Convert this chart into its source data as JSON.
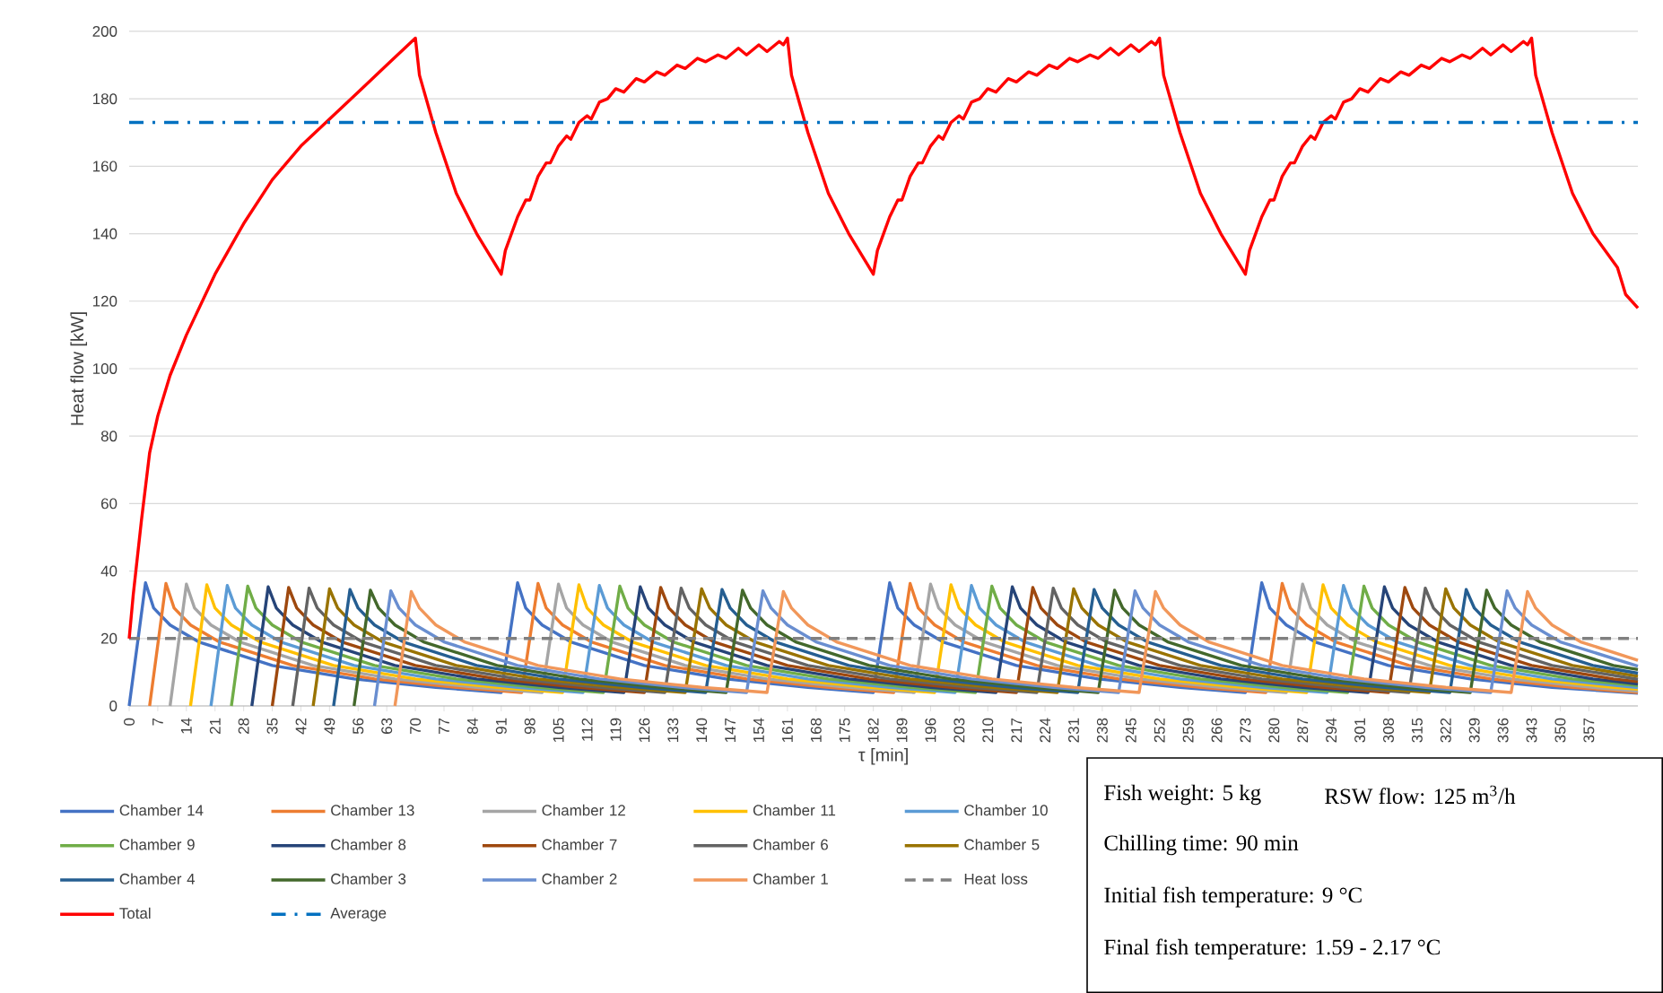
{
  "chart_data": {
    "type": "line",
    "xlabel": "τ [min]",
    "ylabel": "Heat flow [kW]",
    "xlim": [
      0,
      369
    ],
    "ylim": [
      0,
      200
    ],
    "xticks": [
      0,
      7,
      14,
      21,
      28,
      35,
      42,
      49,
      56,
      63,
      70,
      77,
      84,
      91,
      98,
      105,
      112,
      119,
      126,
      133,
      140,
      147,
      154,
      161,
      168,
      175,
      182,
      189,
      196,
      203,
      210,
      217,
      224,
      231,
      238,
      245,
      252,
      259,
      266,
      273,
      280,
      287,
      294,
      301,
      308,
      315,
      322,
      329,
      336,
      343,
      350,
      357
    ],
    "yticks": [
      0,
      20,
      40,
      60,
      80,
      100,
      120,
      140,
      160,
      180,
      200
    ],
    "grid": "y",
    "legend": "bottom",
    "marker": "none",
    "annotations": [
      "Fish weight: 5 kg",
      "RSW flow: 125 m$^{3}$/h",
      "Chilling time: 90 min",
      "Initial fish temperature: 9 °C",
      "Final fish temperature: 1.59 - 2.17 °C"
    ],
    "series": [
      {
        "name": "Chamber 14",
        "color": "#4472c4",
        "x": [
          0,
          4,
          6,
          10,
          17,
          35,
          55,
          75,
          91,
          95,
          97,
          101,
          108,
          126,
          146,
          166,
          182,
          186,
          188,
          192,
          199,
          217,
          237,
          257,
          273,
          277,
          279,
          283,
          290,
          308,
          328,
          348,
          369
        ],
        "values": [
          0,
          36.5,
          29,
          24,
          19,
          12,
          8,
          5.5,
          4,
          36.5,
          29,
          24,
          19,
          12,
          8,
          5.5,
          4,
          36.5,
          29,
          24,
          19,
          12,
          8,
          5.5,
          4,
          36.5,
          29,
          24,
          19,
          12,
          8,
          5.5,
          3.8
        ]
      },
      {
        "name": "Chamber 13",
        "color": "#ed7d31",
        "x": [
          5,
          9,
          11,
          15,
          22,
          40,
          60,
          80,
          96,
          100,
          102,
          106,
          113,
          131,
          151,
          171,
          187,
          191,
          193,
          197,
          204,
          222,
          242,
          262,
          278,
          282,
          284,
          288,
          295,
          313,
          333,
          353,
          369
        ],
        "values": [
          0,
          36.3,
          29,
          24,
          19,
          12,
          8,
          5.5,
          4,
          36.3,
          29,
          24,
          19,
          12,
          8,
          5.5,
          4,
          36.3,
          29,
          24,
          19,
          12,
          8,
          5.5,
          4,
          36.3,
          29,
          24,
          19,
          12,
          8,
          5.5,
          4
        ]
      },
      {
        "name": "Chamber 12",
        "color": "#a5a5a5",
        "x": [
          10,
          14,
          16,
          20,
          27,
          45,
          65,
          85,
          101,
          105,
          107,
          111,
          118,
          136,
          156,
          176,
          192,
          196,
          198,
          202,
          209,
          227,
          247,
          267,
          283,
          287,
          289,
          293,
          300,
          318,
          338,
          358,
          369
        ],
        "values": [
          0,
          36.1,
          29,
          24,
          19,
          12,
          8,
          5.5,
          4,
          36.1,
          29,
          24,
          19,
          12,
          8,
          5.5,
          4,
          36.1,
          29,
          24,
          19,
          12,
          8,
          5.5,
          4,
          36.1,
          29,
          24,
          19,
          12,
          8,
          5.5,
          4.4
        ]
      },
      {
        "name": "Chamber 11",
        "color": "#ffc000",
        "x": [
          15,
          19,
          21,
          25,
          32,
          50,
          70,
          90,
          106,
          110,
          112,
          116,
          123,
          141,
          161,
          181,
          197,
          201,
          203,
          207,
          214,
          232,
          252,
          272,
          288,
          292,
          294,
          298,
          305,
          323,
          343,
          363,
          369
        ],
        "values": [
          0,
          35.9,
          29,
          24,
          19,
          12,
          8,
          5.5,
          4,
          35.9,
          29,
          24,
          19,
          12,
          8,
          5.5,
          4,
          35.9,
          29,
          24,
          19,
          12,
          8,
          5.5,
          4,
          35.9,
          29,
          24,
          19,
          12,
          8,
          5.5,
          5
        ]
      },
      {
        "name": "Chamber 10",
        "color": "#5b9bd5",
        "x": [
          20,
          24,
          26,
          30,
          37,
          55,
          75,
          95,
          111,
          115,
          117,
          121,
          128,
          146,
          166,
          186,
          202,
          206,
          208,
          212,
          219,
          237,
          257,
          277,
          293,
          297,
          299,
          303,
          310,
          328,
          348,
          369
        ],
        "values": [
          0,
          35.7,
          29,
          24,
          19,
          12,
          8,
          5.5,
          4,
          35.7,
          29,
          24,
          19,
          12,
          8,
          5.5,
          4,
          35.7,
          29,
          24,
          19,
          12,
          8,
          5.5,
          4,
          35.7,
          29,
          24,
          19,
          12,
          8,
          5.4
        ]
      },
      {
        "name": "Chamber 9",
        "color": "#70ad47",
        "x": [
          25,
          29,
          31,
          35,
          42,
          60,
          80,
          100,
          116,
          120,
          122,
          126,
          133,
          151,
          171,
          191,
          207,
          211,
          213,
          217,
          224,
          242,
          262,
          282,
          298,
          302,
          304,
          308,
          315,
          333,
          353,
          369
        ],
        "values": [
          0,
          35.5,
          29,
          24,
          19,
          12,
          8,
          5.5,
          4,
          35.5,
          29,
          24,
          19,
          12,
          8,
          5.5,
          4,
          35.5,
          29,
          24,
          19,
          12,
          8,
          5.5,
          4,
          35.5,
          29,
          24,
          19,
          12,
          8,
          6
        ]
      },
      {
        "name": "Chamber 8",
        "color": "#264478",
        "x": [
          30,
          34,
          36,
          40,
          47,
          65,
          85,
          105,
          121,
          125,
          127,
          131,
          138,
          156,
          176,
          196,
          212,
          216,
          218,
          222,
          229,
          247,
          267,
          287,
          303,
          307,
          309,
          313,
          320,
          338,
          358,
          369
        ],
        "values": [
          0,
          35.3,
          29,
          24,
          19,
          12,
          8,
          5.5,
          4,
          35.3,
          29,
          24,
          19,
          12,
          8,
          5.5,
          4,
          35.3,
          29,
          24,
          19,
          12,
          8,
          5.5,
          4,
          35.3,
          29,
          24,
          19,
          12,
          8,
          6.5
        ]
      },
      {
        "name": "Chamber 7",
        "color": "#9e480e",
        "x": [
          35,
          39,
          41,
          45,
          52,
          70,
          90,
          110,
          126,
          130,
          132,
          136,
          143,
          161,
          181,
          201,
          217,
          221,
          223,
          227,
          234,
          252,
          272,
          292,
          308,
          312,
          314,
          318,
          325,
          343,
          363,
          369
        ],
        "values": [
          0,
          35.1,
          29,
          24,
          19,
          12,
          8,
          5.5,
          4,
          35.1,
          29,
          24,
          19,
          12,
          8,
          5.5,
          4,
          35.1,
          29,
          24,
          19,
          12,
          8,
          5.5,
          4,
          35.1,
          29,
          24,
          19,
          12,
          8,
          7.2
        ]
      },
      {
        "name": "Chamber 6",
        "color": "#636363",
        "x": [
          40,
          44,
          46,
          50,
          57,
          75,
          95,
          115,
          131,
          135,
          137,
          141,
          148,
          166,
          186,
          206,
          222,
          226,
          228,
          232,
          239,
          257,
          277,
          297,
          313,
          317,
          319,
          323,
          330,
          348,
          369
        ],
        "values": [
          0,
          34.9,
          29,
          24,
          19,
          12,
          8,
          5.5,
          4,
          34.9,
          29,
          24,
          19,
          12,
          8,
          5.5,
          4,
          34.9,
          29,
          24,
          19,
          12,
          8,
          5.5,
          4,
          34.9,
          29,
          24,
          19,
          12,
          7.9
        ]
      },
      {
        "name": "Chamber 5",
        "color": "#997300",
        "x": [
          45,
          49,
          51,
          55,
          62,
          80,
          100,
          120,
          136,
          140,
          142,
          146,
          153,
          171,
          191,
          211,
          227,
          231,
          233,
          237,
          244,
          262,
          282,
          302,
          318,
          322,
          324,
          328,
          335,
          353,
          369
        ],
        "values": [
          0,
          34.7,
          29,
          24,
          19,
          12,
          8,
          5.5,
          4,
          34.7,
          29,
          24,
          19,
          12,
          8,
          5.5,
          4,
          34.7,
          29,
          24,
          19,
          12,
          8,
          5.5,
          4,
          34.7,
          29,
          24,
          19,
          12,
          8.8
        ]
      },
      {
        "name": "Chamber 4",
        "color": "#255e91",
        "x": [
          50,
          54,
          56,
          60,
          67,
          85,
          105,
          125,
          141,
          145,
          147,
          151,
          158,
          176,
          196,
          216,
          232,
          236,
          238,
          242,
          249,
          267,
          287,
          307,
          323,
          327,
          329,
          333,
          340,
          358,
          369
        ],
        "values": [
          0,
          34.5,
          29,
          24,
          19,
          12,
          8,
          5.5,
          4,
          34.5,
          29,
          24,
          19,
          12,
          8,
          5.5,
          4,
          34.5,
          29,
          24,
          19,
          12,
          8,
          5.5,
          4,
          34.5,
          29,
          24,
          19,
          12,
          9.7
        ]
      },
      {
        "name": "Chamber 3",
        "color": "#43682b",
        "x": [
          55,
          59,
          61,
          65,
          72,
          90,
          110,
          130,
          146,
          150,
          152,
          156,
          163,
          181,
          201,
          221,
          237,
          241,
          243,
          247,
          254,
          272,
          292,
          312,
          328,
          332,
          334,
          338,
          345,
          363,
          369
        ],
        "values": [
          0,
          34.3,
          29,
          24,
          19,
          12,
          8,
          5.5,
          4,
          34.3,
          29,
          24,
          19,
          12,
          8,
          5.5,
          4,
          34.3,
          29,
          24,
          19,
          12,
          8,
          5.5,
          4,
          34.3,
          29,
          24,
          19,
          12,
          10.8
        ]
      },
      {
        "name": "Chamber 2",
        "color": "#698ed0",
        "x": [
          60,
          64,
          66,
          70,
          77,
          95,
          115,
          135,
          151,
          155,
          157,
          161,
          168,
          186,
          206,
          226,
          242,
          246,
          248,
          252,
          259,
          277,
          297,
          317,
          333,
          337,
          339,
          343,
          350,
          369
        ],
        "values": [
          0,
          34.1,
          29,
          24,
          19,
          12,
          8,
          5.5,
          4,
          34.1,
          29,
          24,
          19,
          12,
          8,
          5.5,
          4,
          34.1,
          29,
          24,
          19,
          12,
          8,
          5.5,
          4,
          34.1,
          29,
          24,
          19,
          11.8
        ]
      },
      {
        "name": "Chamber 1",
        "color": "#f1975a",
        "x": [
          65,
          69,
          71,
          75,
          82,
          100,
          120,
          140,
          156,
          160,
          162,
          166,
          173,
          191,
          211,
          231,
          247,
          251,
          253,
          257,
          264,
          282,
          302,
          322,
          338,
          342,
          344,
          348,
          355,
          369
        ],
        "values": [
          0,
          33.9,
          29,
          24,
          19,
          12,
          8,
          5.5,
          4,
          33.9,
          29,
          24,
          19,
          12,
          8,
          5.5,
          4,
          33.9,
          29,
          24,
          19,
          12,
          8,
          5.5,
          4,
          33.9,
          29,
          24,
          19,
          13.5
        ]
      },
      {
        "name": "Heat loss",
        "color": "#808080",
        "line_style": "dashed",
        "x": [
          0,
          369
        ],
        "values": [
          20,
          20
        ]
      },
      {
        "name": "Total",
        "color": "#ff0000",
        "x": [
          0,
          1,
          3,
          5,
          7,
          10,
          14,
          21,
          28,
          35,
          42,
          49,
          56,
          63,
          70,
          71,
          75,
          80,
          85,
          91,
          92,
          95,
          97,
          98,
          100,
          102,
          103,
          105,
          107,
          108,
          110,
          112,
          113,
          115,
          117,
          119,
          121,
          124,
          126,
          129,
          131,
          134,
          136,
          139,
          141,
          144,
          146,
          149,
          151,
          154,
          156,
          159,
          160,
          161,
          162,
          166,
          171,
          176,
          182,
          183,
          186,
          188,
          189,
          191,
          193,
          194,
          196,
          198,
          199,
          201,
          203,
          204,
          206,
          208,
          210,
          212,
          215,
          217,
          220,
          222,
          225,
          227,
          230,
          232,
          235,
          237,
          240,
          242,
          245,
          247,
          250,
          251,
          252,
          253,
          257,
          262,
          267,
          273,
          274,
          277,
          279,
          280,
          282,
          284,
          285,
          287,
          289,
          290,
          292,
          294,
          295,
          297,
          299,
          301,
          303,
          306,
          308,
          311,
          313,
          316,
          318,
          321,
          323,
          326,
          328,
          331,
          333,
          336,
          338,
          341,
          342,
          343,
          344,
          348,
          353,
          358,
          364,
          366,
          369
        ],
        "values": [
          20,
          33,
          55,
          75,
          86,
          98,
          110,
          128,
          143,
          156,
          166,
          174,
          182,
          190,
          198,
          187,
          170,
          152,
          140,
          128,
          135,
          145,
          150,
          150,
          157,
          161,
          161,
          166,
          169,
          168,
          173,
          175,
          174,
          179,
          180,
          183,
          182,
          186,
          185,
          188,
          187,
          190,
          189,
          192,
          191,
          193,
          192,
          195,
          193,
          196,
          194,
          197,
          196,
          198,
          187,
          170,
          152,
          140,
          128,
          135,
          145,
          150,
          150,
          157,
          161,
          161,
          166,
          169,
          168,
          173,
          175,
          174,
          179,
          180,
          183,
          182,
          186,
          185,
          188,
          187,
          190,
          189,
          192,
          191,
          193,
          192,
          195,
          193,
          196,
          194,
          197,
          196,
          198,
          187,
          170,
          152,
          140,
          128,
          135,
          145,
          150,
          150,
          157,
          161,
          161,
          166,
          169,
          168,
          173,
          175,
          174,
          179,
          180,
          183,
          182,
          186,
          185,
          188,
          187,
          190,
          189,
          192,
          191,
          193,
          192,
          195,
          193,
          196,
          194,
          197,
          196,
          198,
          187,
          170,
          152,
          140,
          130,
          122,
          118
        ]
      },
      {
        "name": "Average",
        "color": "#0070c0",
        "line_style": "dashdot",
        "x": [
          0,
          369
        ],
        "values": [
          173,
          173
        ]
      }
    ]
  }
}
